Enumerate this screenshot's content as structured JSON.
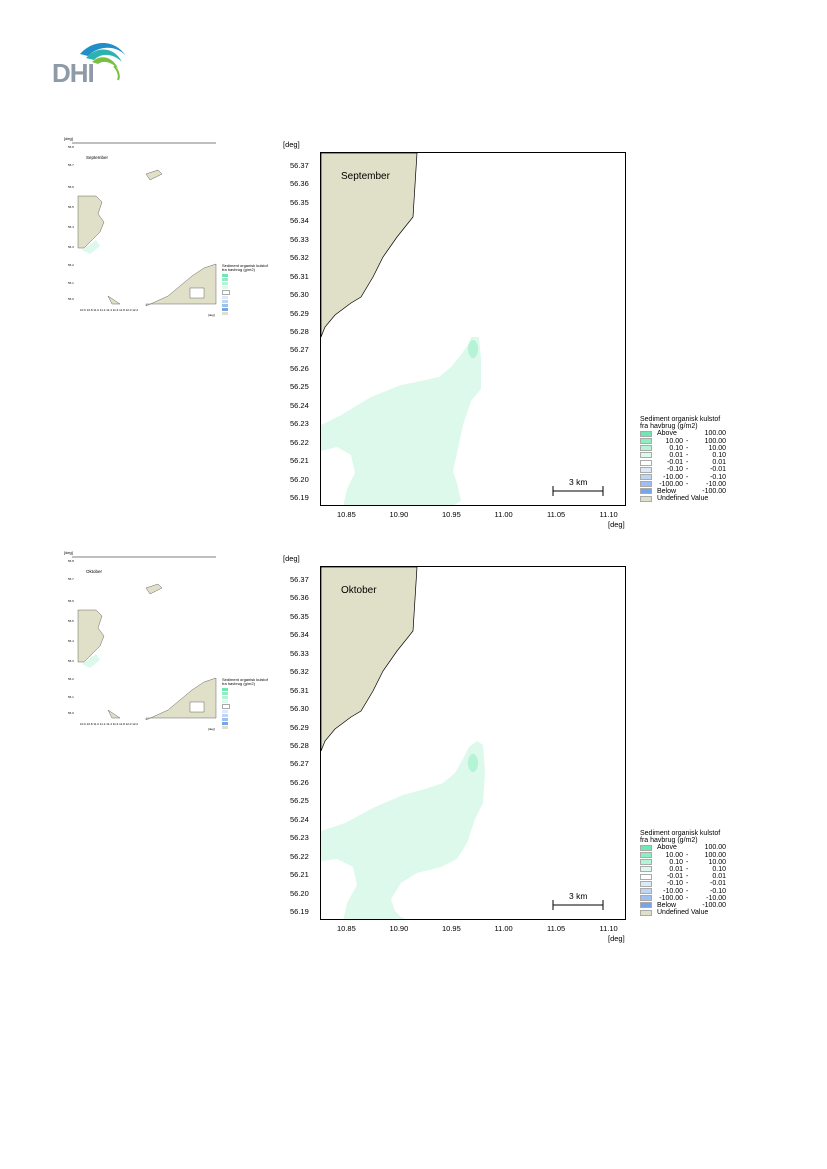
{
  "header": {
    "logo_text": "DHI"
  },
  "panels": [
    {
      "month_label": "September",
      "deg_label": "[deg]",
      "y_ticks": [
        "56.37",
        "56.36",
        "56.35",
        "56.34",
        "56.33",
        "56.32",
        "56.31",
        "56.30",
        "56.29",
        "56.28",
        "56.27",
        "56.26",
        "56.25",
        "56.24",
        "56.23",
        "56.22",
        "56.21",
        "56.20",
        "56.19"
      ],
      "x_ticks": [
        "10.85",
        "10.90",
        "10.95",
        "11.00",
        "11.05",
        "11.10"
      ],
      "x_unit": "[deg]",
      "scale_label": "3 km",
      "legend": {
        "title1": "Sediment organisk kulstof",
        "title2": "fra havbrug (g/m2)",
        "items": [
          {
            "a": "Above",
            "b": "",
            "c": "100.00",
            "color": "#6fe7b2"
          },
          {
            "a": "10.00",
            "b": "-",
            "c": "100.00",
            "color": "#8fedc2"
          },
          {
            "a": "0.10",
            "b": "-",
            "c": "10.00",
            "color": "#b4f3d6"
          },
          {
            "a": "0.01",
            "b": "-",
            "c": "0.10",
            "color": "#dcf9ec"
          },
          {
            "a": "-0.01",
            "b": "-",
            "c": "0.01",
            "color": "#ffffff"
          },
          {
            "a": "-0.10",
            "b": "-",
            "c": "-0.01",
            "color": "#dce9f8"
          },
          {
            "a": "-10.00",
            "b": "-",
            "c": "-0.10",
            "color": "#bed6f4"
          },
          {
            "a": "-100.00",
            "b": "-",
            "c": "-10.00",
            "color": "#9ec0ef"
          },
          {
            "a": "Below",
            "b": "",
            "c": "-100.00",
            "color": "#76a5e8"
          },
          {
            "a": "Undefined Value",
            "b": "",
            "c": "",
            "color": "#e0dfc7"
          }
        ]
      }
    },
    {
      "month_label": "Oktober",
      "deg_label": "[deg]",
      "y_ticks": [
        "56.37",
        "56.36",
        "56.35",
        "56.34",
        "56.33",
        "56.32",
        "56.31",
        "56.30",
        "56.29",
        "56.28",
        "56.27",
        "56.26",
        "56.25",
        "56.24",
        "56.23",
        "56.22",
        "56.21",
        "56.20",
        "56.19"
      ],
      "x_ticks": [
        "10.85",
        "10.90",
        "10.95",
        "11.00",
        "11.05",
        "11.10"
      ],
      "x_unit": "[deg]",
      "scale_label": "3 km",
      "legend": {
        "title1": "Sediment organisk kulstof",
        "title2": "fra havbrug (g/m2)",
        "items": [
          {
            "a": "Above",
            "b": "",
            "c": "100.00",
            "color": "#6fe7b2"
          },
          {
            "a": "10.00",
            "b": "-",
            "c": "100.00",
            "color": "#8fedc2"
          },
          {
            "a": "0.10",
            "b": "-",
            "c": "10.00",
            "color": "#b4f3d6"
          },
          {
            "a": "0.01",
            "b": "-",
            "c": "0.10",
            "color": "#dcf9ec"
          },
          {
            "a": "-0.01",
            "b": "-",
            "c": "0.01",
            "color": "#ffffff"
          },
          {
            "a": "-0.10",
            "b": "-",
            "c": "-0.01",
            "color": "#dce9f8"
          },
          {
            "a": "-10.00",
            "b": "-",
            "c": "-0.10",
            "color": "#bed6f4"
          },
          {
            "a": "-100.00",
            "b": "-",
            "c": "-10.00",
            "color": "#9ec0ef"
          },
          {
            "a": "Below",
            "b": "",
            "c": "-100.00",
            "color": "#76a5e8"
          },
          {
            "a": "Undefined Value",
            "b": "",
            "c": "",
            "color": "#e0dfc7"
          }
        ]
      }
    }
  ],
  "colors": {
    "land": "#e0dfc7",
    "plume": "#dcf9ec",
    "plume_core": "#b4f3d6",
    "logo_blue": "#1f8ec9",
    "logo_teal": "#2ab3b0",
    "logo_green": "#78c043"
  }
}
